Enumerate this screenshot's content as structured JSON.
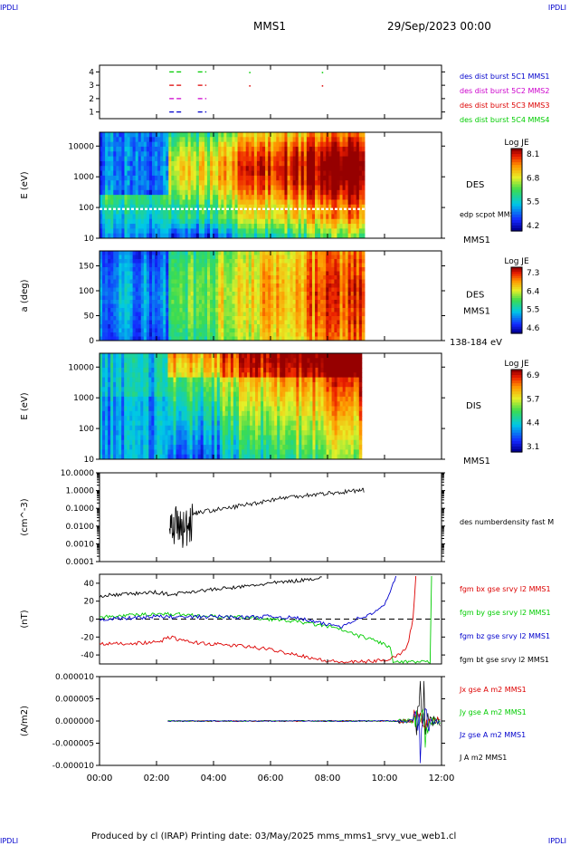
{
  "page": {
    "corner_tag": "IPDLI",
    "title": "MMS1",
    "date": "29/Sep/2023 00:00",
    "footer": "Produced by cl (IRAP)    Printing date: 03/May/2025    mms_mms1_srvy_vue_web1.cl"
  },
  "colors": {
    "blue": "#0000cc",
    "magenta": "#cc00cc",
    "red": "#dd0000",
    "green": "#00cc00",
    "black": "#000000"
  },
  "time_axis": {
    "ticks": [
      "00:00",
      "02:00",
      "04:00",
      "06:00",
      "08:00",
      "10:00",
      "12:00"
    ],
    "range_hours": [
      0,
      12
    ]
  },
  "chart_data": [
    {
      "type": "scatter",
      "name": "burst",
      "yticks": [
        "1",
        "2",
        "3",
        "4"
      ],
      "ylim": [
        0.5,
        4.5
      ],
      "legend": [
        {
          "text": "des dist burst 5C1 MMS1",
          "color": "#0000cc"
        },
        {
          "text": "des dist burst 5C2 MMS2",
          "color": "#cc00cc"
        },
        {
          "text": "des dist burst 5C3 MMS3",
          "color": "#dd0000"
        },
        {
          "text": "des dist burst 5C4 MMS4",
          "color": "#00cc00"
        }
      ],
      "series": [
        {
          "level": 1,
          "color": "#0000cc",
          "intervals": [
            [
              2.45,
              2.95
            ],
            [
              3.45,
              3.75
            ]
          ],
          "dots": []
        },
        {
          "level": 2,
          "color": "#cc00cc",
          "intervals": [
            [
              2.45,
              2.95
            ],
            [
              3.45,
              3.75
            ]
          ],
          "dots": []
        },
        {
          "level": 3,
          "color": "#dd0000",
          "intervals": [
            [
              2.45,
              2.95
            ],
            [
              3.45,
              3.75
            ]
          ],
          "dots": [
            5.25,
            7.8
          ]
        },
        {
          "level": 4,
          "color": "#00cc00",
          "intervals": [
            [
              2.45,
              2.95
            ],
            [
              3.45,
              3.75
            ]
          ],
          "dots": [
            5.25,
            7.8
          ]
        }
      ]
    },
    {
      "type": "heatmap",
      "name": "des-energy",
      "ylabel": "E (eV)",
      "yticks": [
        "10",
        "100",
        "1000",
        "10000"
      ],
      "ylim_log": [
        1,
        4.45
      ],
      "side_label": "DES",
      "side_label2": "edp scpot MMS1",
      "side_label3": "MMS1",
      "colorbar": {
        "title": "Log JE",
        "ticks": [
          "8.1",
          "6.8",
          "5.5",
          "4.2"
        ]
      },
      "data_end_hours": 9.3,
      "scpot_log": 1.95
    },
    {
      "type": "heatmap",
      "name": "des-pitch",
      "ylabel": "a (deg)",
      "yticks": [
        "0",
        "50",
        "100",
        "150"
      ],
      "ylim": [
        0,
        180
      ],
      "side_label": "DES",
      "side_label2": "MMS1",
      "side_label3": "138-184 eV",
      "colorbar": {
        "title": "Log JE",
        "ticks": [
          "7.3",
          "6.4",
          "5.5",
          "4.6"
        ]
      },
      "data_end_hours": 9.3
    },
    {
      "type": "heatmap",
      "name": "dis-energy",
      "ylabel": "E (eV)",
      "yticks": [
        "10",
        "100",
        "1000",
        "10000"
      ],
      "ylim_log": [
        1,
        4.45
      ],
      "side_label": "DIS",
      "side_label2": "MMS1",
      "colorbar": {
        "title": "Log JE",
        "ticks": [
          "6.9",
          "5.7",
          "4.4",
          "3.1"
        ]
      },
      "data_end_hours": 9.2
    },
    {
      "type": "line",
      "name": "density",
      "ylabel": "(cm^-3)",
      "yticks": [
        "10.0000",
        "1.0000",
        "0.1000",
        "0.0100",
        "0.0010",
        "0.0001"
      ],
      "ylim_log": [
        -4,
        1
      ],
      "legend": [
        {
          "text": "des numberdensity fast M",
          "color": "#000000"
        }
      ],
      "x": [
        2.45,
        2.6,
        2.8,
        3.0,
        3.2,
        3.5,
        4.0,
        4.5,
        5.0,
        5.5,
        6.0,
        6.5,
        7.0,
        7.5,
        8.0,
        8.5,
        9.0,
        9.3
      ],
      "y": [
        0.02,
        0.03,
        0.015,
        0.01,
        0.05,
        0.06,
        0.08,
        0.1,
        0.15,
        0.2,
        0.3,
        0.4,
        0.5,
        0.6,
        0.7,
        0.8,
        1.0,
        1.0
      ]
    },
    {
      "type": "line",
      "name": "fgm",
      "ylabel": "(nT)",
      "yticks": [
        "40",
        "20",
        "0",
        "-20",
        "-40"
      ],
      "ylim": [
        -50,
        50
      ],
      "legend": [
        {
          "text": "fgm bx gse srvy l2 MMS1",
          "color": "#dd0000"
        },
        {
          "text": "fgm by gse srvy l2 MMS1",
          "color": "#00cc00"
        },
        {
          "text": "fgm bz gse srvy l2 MMS1",
          "color": "#0000cc"
        },
        {
          "text": "fgm bt gse srvy l2 MMS1",
          "color": "#000000"
        }
      ],
      "series": [
        {
          "color": "#000000",
          "x": [
            0,
            1,
            2,
            2.5,
            3,
            4,
            5,
            6,
            7,
            7.5,
            7.8
          ],
          "y": [
            26,
            28,
            30,
            27,
            30,
            33,
            36,
            40,
            43,
            45,
            47
          ]
        },
        {
          "color": "#00cc00",
          "x": [
            0,
            1,
            2,
            3,
            4,
            5,
            6,
            7,
            8,
            8.5,
            9,
            9.5,
            10,
            10.2,
            10.3,
            11.6,
            11.65
          ],
          "y": [
            2,
            4,
            6,
            5,
            3,
            2,
            0,
            -3,
            -8,
            -12,
            -18,
            -22,
            -28,
            -32,
            -48,
            -48,
            48
          ]
        },
        {
          "color": "#0000cc",
          "x": [
            0,
            1,
            2,
            3,
            4,
            5,
            6,
            7,
            7.8,
            8.5,
            9,
            9.5,
            10,
            10.4
          ],
          "y": [
            0,
            1,
            3,
            2,
            3,
            2,
            3,
            1,
            -5,
            -8,
            0,
            5,
            15,
            48
          ]
        },
        {
          "color": "#dd0000",
          "x": [
            0,
            1,
            2,
            2.5,
            3,
            4,
            5,
            6,
            7,
            7.8,
            8.5,
            9,
            10,
            10.5,
            10.8,
            11,
            11.1
          ],
          "y": [
            -28,
            -27,
            -26,
            -20,
            -25,
            -28,
            -30,
            -34,
            -40,
            -46,
            -48,
            -48,
            -46,
            -40,
            -30,
            0,
            48
          ]
        }
      ]
    },
    {
      "type": "line",
      "name": "current",
      "ylabel": "(A/m2)",
      "yticks": [
        "0.000010",
        "0.000005",
        "0.000000",
        "-0.000005",
        "-0.000010"
      ],
      "ylim": [
        -1e-05,
        1e-05
      ],
      "legend": [
        {
          "text": "Jx gse A m2 MMS1",
          "color": "#dd0000"
        },
        {
          "text": "Jy gse A m2 MMS1",
          "color": "#00cc00"
        },
        {
          "text": "Jz gse A m2 MMS1",
          "color": "#0000cc"
        },
        {
          "text": "J A m2 MMS1",
          "color": "#000000"
        }
      ]
    }
  ]
}
